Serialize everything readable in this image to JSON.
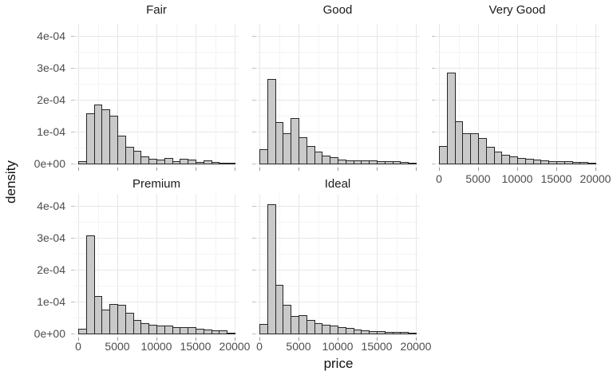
{
  "figure": {
    "kind": "faceted histogram (ggplot2-style), density of price by diamond cut",
    "background": "#ffffff"
  },
  "chart_data": {
    "type": "bar",
    "subtype": "faceted-density-histogram",
    "xlabel": "price",
    "ylabel": "density",
    "xlim": [
      0,
      20000
    ],
    "ylim_e04": [
      0,
      4.4
    ],
    "bin_width": 1000,
    "x_ticks": [
      0,
      5000,
      10000,
      15000,
      20000
    ],
    "x_tick_labels": [
      "0",
      "5000",
      "10000",
      "15000",
      "20000"
    ],
    "x_minor_ticks": [
      2500,
      7500,
      12500,
      17500
    ],
    "y_ticks_e04": [
      0,
      1,
      2,
      3,
      4
    ],
    "y_tick_labels": [
      "0e+00",
      "1e-04",
      "2e-04",
      "3e-04",
      "4e-04"
    ],
    "y_minor_ticks_e04": [
      0.5,
      1.5,
      2.5,
      3.5
    ],
    "grid": "major and minor, light gray on white",
    "legend": "none",
    "panels": [
      {
        "title": "Fair",
        "row": 0,
        "col": 0,
        "x_axis_labels": false,
        "densities_e04": [
          0.08,
          1.57,
          1.86,
          1.71,
          1.5,
          0.88,
          0.52,
          0.41,
          0.23,
          0.16,
          0.12,
          0.18,
          0.08,
          0.15,
          0.12,
          0.05,
          0.1,
          0.04,
          0.03,
          0.02
        ]
      },
      {
        "title": "Good",
        "row": 0,
        "col": 1,
        "x_axis_labels": false,
        "densities_e04": [
          0.46,
          2.64,
          1.3,
          0.96,
          1.42,
          0.83,
          0.54,
          0.37,
          0.25,
          0.2,
          0.13,
          0.11,
          0.1,
          0.1,
          0.09,
          0.08,
          0.08,
          0.07,
          0.06,
          0.03
        ]
      },
      {
        "title": "Very Good",
        "row": 0,
        "col": 2,
        "x_axis_labels": true,
        "densities_e04": [
          0.54,
          2.85,
          1.32,
          0.96,
          0.94,
          0.81,
          0.52,
          0.38,
          0.27,
          0.23,
          0.18,
          0.14,
          0.12,
          0.09,
          0.08,
          0.07,
          0.08,
          0.06,
          0.05,
          0.02
        ]
      },
      {
        "title": "Premium",
        "row": 1,
        "col": 0,
        "x_axis_labels": true,
        "densities_e04": [
          0.15,
          3.07,
          1.17,
          0.76,
          0.93,
          0.91,
          0.64,
          0.43,
          0.32,
          0.28,
          0.24,
          0.24,
          0.2,
          0.19,
          0.19,
          0.14,
          0.12,
          0.11,
          0.09,
          0.03
        ]
      },
      {
        "title": "Ideal",
        "row": 1,
        "col": 1,
        "x_axis_labels": true,
        "densities_e04": [
          0.3,
          4.05,
          1.53,
          0.91,
          0.55,
          0.58,
          0.43,
          0.33,
          0.28,
          0.24,
          0.2,
          0.17,
          0.13,
          0.1,
          0.08,
          0.07,
          0.06,
          0.06,
          0.05,
          0.02
        ]
      }
    ]
  },
  "colors": {
    "bar_fill": "#c9c9c9",
    "bar_stroke": "#262626",
    "grid_major": "#e7e7e7",
    "grid_minor": "#f4f4f4",
    "tick_label": "#4d4d4d",
    "title_text": "#1a1a1a",
    "axis_title_text": "#111111"
  }
}
